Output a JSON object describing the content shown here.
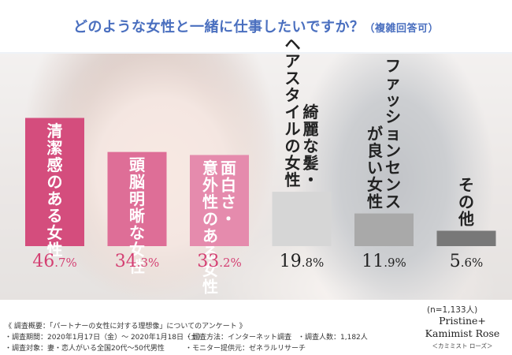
{
  "header": {
    "title": "どのような女性と一緒に仕事したいですか？",
    "subtitle": "（複雑回答可）"
  },
  "chart_data": {
    "type": "bar",
    "categories": [
      "清潔感のある女性",
      "頭脳明晰な女性",
      "面白さ・意外性のある女性",
      "綺麗な髪・ヘアスタイルの女性",
      "ファッションセンスが良い女性",
      "その他"
    ],
    "label_columns": [
      [
        "清潔感のある女性"
      ],
      [
        "頭脳明晰な女性"
      ],
      [
        "面白さ・",
        "意外性のある女性"
      ],
      [
        "綺麗な髪・",
        "ヘアスタイルの女性"
      ],
      [
        "ファッションセンス",
        "が良い女性"
      ],
      [
        "その他"
      ]
    ],
    "values": [
      46.7,
      34.3,
      33.2,
      19.8,
      11.9,
      5.6
    ],
    "value_int": [
      "46",
      "34",
      "33",
      "19",
      "11",
      "5"
    ],
    "value_frac": [
      ".7%",
      ".3%",
      ".2%",
      ".8%",
      ".9%",
      ".6%"
    ],
    "ylim": [
      0,
      50
    ],
    "grid": false,
    "colors": [
      "#d44d7d",
      "#de6e97",
      "#e58bad",
      "#d6d6d6",
      "#a9a9a9",
      "#787878"
    ],
    "label_colors": [
      "#ffffff",
      "#ffffff",
      "#ffffff",
      "#222222",
      "#222222",
      "#222222"
    ],
    "value_colors": [
      "#d43f72",
      "#d43f72",
      "#d43f72",
      "#222222",
      "#222222",
      "#222222"
    ],
    "sample_size": "(n=1,133人)"
  },
  "footer": {
    "survey_title": "《 調査概要：「パートナーの女性に対する理想像」についてのアンケート 》",
    "period": "・調査期間：2020年1月17日（金）～ 2020年1月18日（土）",
    "method": "・調査方法：インターネット調査",
    "respondents": "・調査人数：1,182人",
    "target": "・調査対象：妻・恋人がいる全国20代～50代男性",
    "provider": "・モニター提供元：ゼネラルリサーチ",
    "brand_line1": "Pristine+",
    "brand_line2": "Kamimist Rose",
    "brand_line3": "＜カミミスト ローズ＞"
  }
}
